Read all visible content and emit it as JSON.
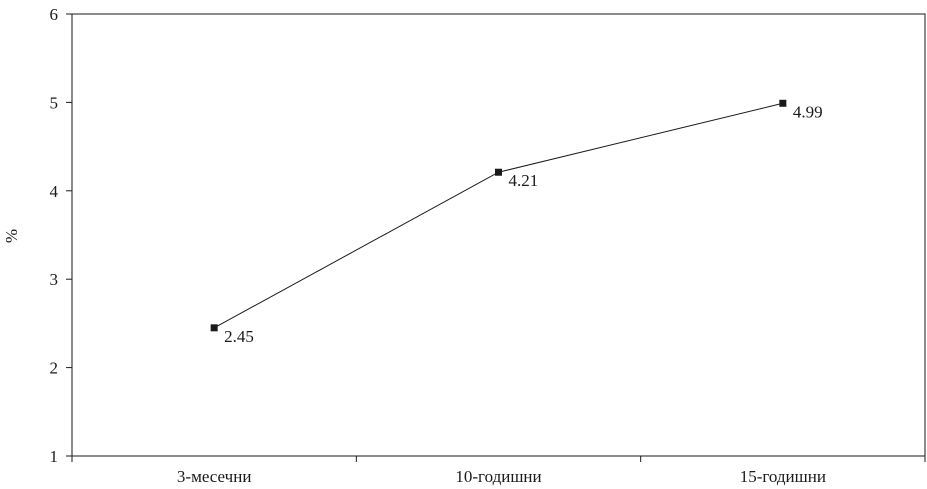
{
  "chart_data": {
    "type": "line",
    "categories": [
      "3-месечни",
      "10-годишни",
      "15-годишни"
    ],
    "series": [
      {
        "values": [
          2.45,
          4.21,
          4.99
        ]
      }
    ],
    "data_labels": [
      "2.45",
      "4.21",
      "4.99"
    ],
    "title": "",
    "xlabel": "",
    "ylabel": "%",
    "ylim": [
      1,
      6
    ],
    "yticks": [
      "1",
      "2",
      "3",
      "4",
      "5",
      "6"
    ],
    "grid": false,
    "legend": "none",
    "colors": {
      "line": "#1a1a1a",
      "marker": "#1a1a1a",
      "axis": "#1a1a1a"
    }
  }
}
